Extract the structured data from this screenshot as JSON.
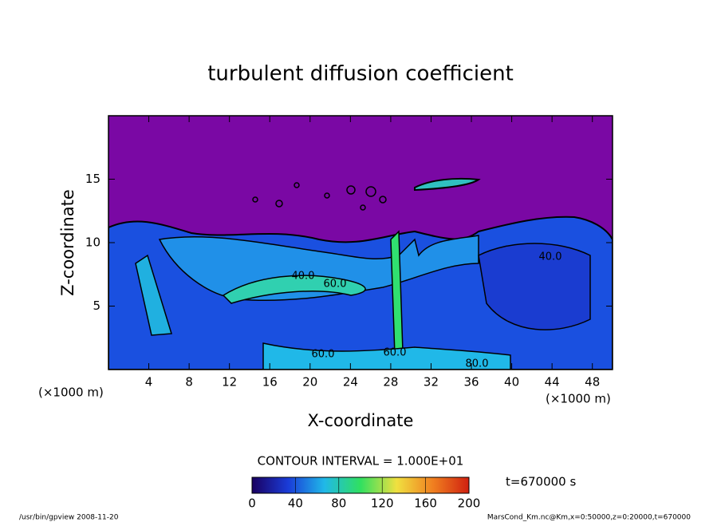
{
  "chart_data": {
    "type": "contour",
    "title": "turbulent diffusion coefficient",
    "x_label": "X-coordinate",
    "y_label": "Z-coordinate",
    "x_unit": "(×1000 m)",
    "y_unit": "(×1000 m)",
    "xlim": [
      0,
      50
    ],
    "xticks": [
      4,
      8,
      12,
      16,
      20,
      24,
      28,
      32,
      36,
      40,
      44,
      48
    ],
    "ylim": [
      0,
      20
    ],
    "yticks": [
      5,
      10,
      15
    ],
    "contour_interval_label": "CONTOUR INTERVAL = 1.000E+01",
    "clim": [
      0,
      200
    ],
    "cticks": [
      0,
      40,
      80,
      120,
      160,
      200
    ],
    "colors": [
      "#1a0060",
      "#1a3cd8",
      "#20b8e8",
      "#30e060",
      "#f0e040",
      "#f08020",
      "#d02010"
    ],
    "contour_labels": [
      "40.0",
      "60.0",
      "40.0",
      "60.0",
      "60.0",
      "80.0"
    ],
    "time_label": "t=670000 s",
    "footer_left": "/usr/bin/gpview   2008-11-20",
    "footer_right": "MarsCond_Km.nc@Km,x=0:50000,z=0:20000,t=670000"
  }
}
